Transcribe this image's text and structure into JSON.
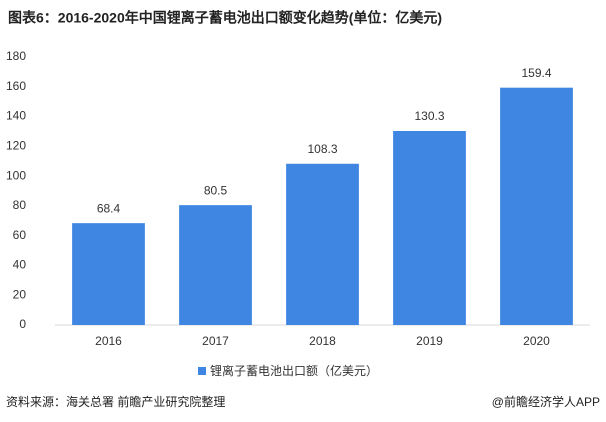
{
  "chart_data": {
    "type": "bar",
    "title": "图表6：2016-2020年中国锂离子蓄电池出口额变化趋势(单位：亿美元)",
    "categories": [
      "2016",
      "2017",
      "2018",
      "2019",
      "2020"
    ],
    "series": [
      {
        "name": "锂离子蓄电池出口额（亿美元）",
        "color": "#3f86e3",
        "values": [
          68.4,
          80.5,
          108.3,
          130.3,
          159.4
        ]
      }
    ],
    "ylim": [
      0,
      180
    ],
    "yticks": [
      0,
      20,
      40,
      60,
      80,
      100,
      120,
      140,
      160,
      180
    ],
    "grid": false,
    "legend": "bottom",
    "source": "资料来源：海关总署 前瞻产业研究院整理",
    "credit": "@前瞻经济学人APP"
  }
}
